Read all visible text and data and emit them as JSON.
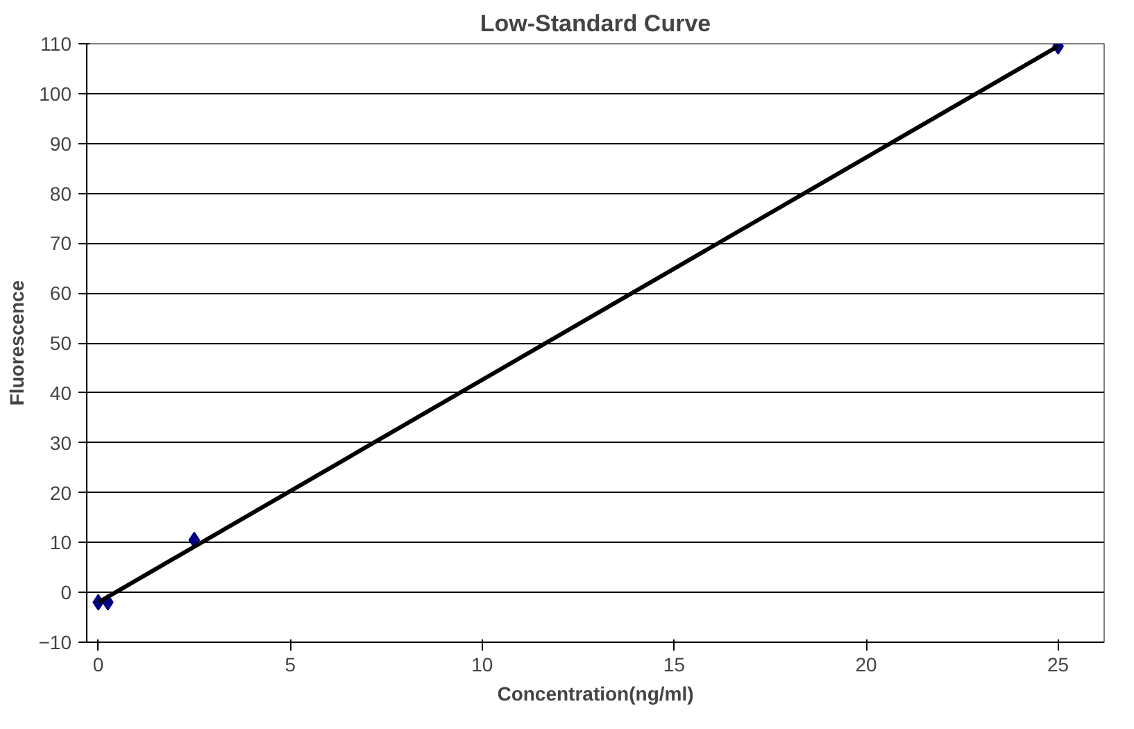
{
  "chart_data": {
    "type": "scatter",
    "title": "Low-Standard Curve",
    "xlabel": "Concentration(ng/ml)",
    "ylabel": "Fluorescence",
    "xlim": [
      -0.3,
      26.2
    ],
    "xticks": [
      0,
      5,
      10,
      15,
      20,
      25
    ],
    "ylim": [
      -10,
      110
    ],
    "yticks": [
      -10,
      0,
      10,
      20,
      30,
      40,
      50,
      60,
      70,
      80,
      90,
      100,
      110
    ],
    "grid": "y",
    "series": [
      {
        "marker": "diamond",
        "color": "#000080",
        "x": [
          0,
          0.25,
          2.5,
          25
        ],
        "values": [
          -2,
          -2,
          10.5,
          109.5
        ]
      },
      {
        "type": "line",
        "color": "#000000",
        "x": [
          0,
          25
        ],
        "values": [
          -2,
          109.5
        ]
      }
    ]
  }
}
